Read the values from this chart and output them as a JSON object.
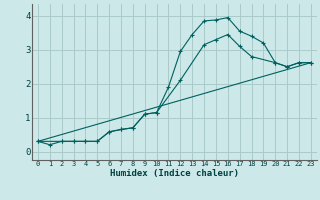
{
  "xlabel": "Humidex (Indice chaleur)",
  "bg_color": "#cce8e8",
  "grid_color": "#aacaca",
  "line_color": "#006060",
  "xlim": [
    -0.5,
    23.5
  ],
  "ylim": [
    -0.25,
    4.35
  ],
  "line1_x": [
    0,
    1,
    2,
    3,
    4,
    5,
    6,
    7,
    8,
    9,
    10,
    11,
    12,
    13,
    14,
    15,
    16,
    17,
    18,
    19,
    20,
    21,
    22,
    23
  ],
  "line1_y": [
    0.3,
    0.2,
    0.3,
    0.3,
    0.3,
    0.3,
    0.58,
    0.65,
    0.7,
    1.1,
    1.15,
    1.9,
    2.95,
    3.45,
    3.85,
    3.88,
    3.95,
    3.55,
    3.4,
    3.2,
    2.62,
    2.5,
    2.62,
    2.62
  ],
  "line2_x": [
    0,
    2,
    3,
    4,
    5,
    6,
    7,
    8,
    9,
    10,
    12,
    14,
    15,
    16,
    17,
    18,
    20,
    21,
    22,
    23
  ],
  "line2_y": [
    0.3,
    0.3,
    0.3,
    0.3,
    0.3,
    0.58,
    0.65,
    0.7,
    1.1,
    1.15,
    2.1,
    3.15,
    3.3,
    3.45,
    3.1,
    2.8,
    2.62,
    2.5,
    2.62,
    2.62
  ],
  "line3_x": [
    0,
    23
  ],
  "line3_y": [
    0.3,
    2.62
  ],
  "yticks": [
    0,
    1,
    2,
    3,
    4
  ],
  "xticks": [
    0,
    1,
    2,
    3,
    4,
    5,
    6,
    7,
    8,
    9,
    10,
    11,
    12,
    13,
    14,
    15,
    16,
    17,
    18,
    19,
    20,
    21,
    22,
    23
  ]
}
